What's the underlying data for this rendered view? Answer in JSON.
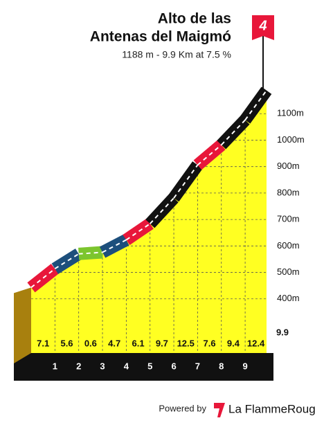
{
  "chart_data": {
    "type": "climb-profile",
    "title": [
      "Alto de las",
      "Antenas del Maigmó"
    ],
    "subtitle": "1188 m - 9.9 Km at 7.5 %",
    "category": "4",
    "x": [
      0,
      1,
      2,
      3,
      4,
      5,
      6,
      7,
      8,
      9,
      9.9
    ],
    "values": [
      443,
      514,
      570,
      576,
      623,
      684,
      781,
      906,
      982,
      1076,
      1188
    ],
    "gradients": [
      7.1,
      5.6,
      0.6,
      4.7,
      6.1,
      9.7,
      12.5,
      7.6,
      9.4,
      12.4
    ],
    "colors": [
      "#e8173a",
      "#1d4f7c",
      "#7cc52e",
      "#1d4f7c",
      "#e8173a",
      "#111111",
      "#111111",
      "#e8173a",
      "#111111",
      "#111111"
    ],
    "fill_color": "#ffff22",
    "xlim": [
      0,
      9.9
    ],
    "xticks": [
      1,
      2,
      3,
      4,
      5,
      6,
      7,
      8,
      9,
      9.9
    ],
    "ylim": [
      300,
      1200
    ],
    "yticks": [
      {
        "value": 400,
        "label": "400m"
      },
      {
        "value": 500,
        "label": "500m"
      },
      {
        "value": 600,
        "label": "600m"
      },
      {
        "value": 700,
        "label": "700m"
      },
      {
        "value": 800,
        "label": "800m"
      },
      {
        "value": 900,
        "label": "900m"
      },
      {
        "value": 1000,
        "label": "1000m"
      },
      {
        "value": 1100,
        "label": "1100m"
      }
    ],
    "grid": true,
    "footer": {
      "prefix": "Powered by",
      "brand": "La FlammeRouge"
    }
  }
}
